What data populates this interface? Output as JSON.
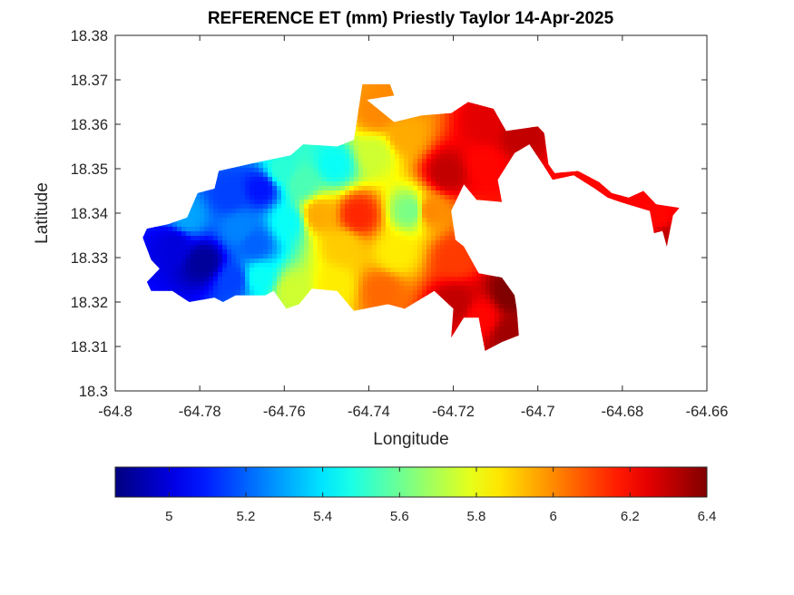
{
  "chart_data": {
    "type": "heatmap",
    "title": "REFERENCE ET (mm) Priestly Taylor 14-Apr-2025",
    "xlabel": "Longitude",
    "ylabel": "Latitude",
    "xlim": [
      -64.8,
      -64.66
    ],
    "ylim": [
      18.3,
      18.38
    ],
    "xticks": [
      -64.8,
      -64.78,
      -64.76,
      -64.74,
      -64.72,
      -64.7,
      -64.68,
      -64.66
    ],
    "xtick_labels": [
      "-64.8",
      "-64.78",
      "-64.76",
      "-64.74",
      "-64.72",
      "-64.7",
      "-64.68",
      "-64.66"
    ],
    "yticks": [
      18.3,
      18.31,
      18.32,
      18.33,
      18.34,
      18.35,
      18.36,
      18.37,
      18.38
    ],
    "ytick_labels": [
      "18.3",
      "18.31",
      "18.32",
      "18.33",
      "18.34",
      "18.35",
      "18.36",
      "18.37",
      "18.38"
    ],
    "grid": false,
    "colormap": "jet",
    "colorbar": {
      "location": "bottom",
      "range": [
        4.86,
        6.4
      ],
      "ticks": [
        5,
        5.2,
        5.4,
        5.6,
        5.8,
        6,
        6.2,
        6.4
      ],
      "tick_labels": [
        "5",
        "5.2",
        "5.4",
        "5.6",
        "5.8",
        "6",
        "6.2",
        "6.4"
      ]
    },
    "region_outline": [
      [
        -64.7925,
        18.3365
      ],
      [
        -64.7875,
        18.3375
      ],
      [
        -64.783,
        18.339
      ],
      [
        -64.7805,
        18.3445
      ],
      [
        -64.7765,
        18.3455
      ],
      [
        -64.7755,
        18.3495
      ],
      [
        -64.7685,
        18.351
      ],
      [
        -64.7585,
        18.353
      ],
      [
        -64.7555,
        18.3555
      ],
      [
        -64.7475,
        18.355
      ],
      [
        -64.7435,
        18.3565
      ],
      [
        -64.7415,
        18.369
      ],
      [
        -64.735,
        18.369
      ],
      [
        -64.734,
        18.3665
      ],
      [
        -64.7405,
        18.3655
      ],
      [
        -64.734,
        18.3605
      ],
      [
        -64.7275,
        18.362
      ],
      [
        -64.7205,
        18.3625
      ],
      [
        -64.7165,
        18.365
      ],
      [
        -64.7105,
        18.3635
      ],
      [
        -64.7075,
        18.3585
      ],
      [
        -64.7,
        18.3595
      ],
      [
        -64.6985,
        18.358
      ],
      [
        -64.6975,
        18.351
      ],
      [
        -64.696,
        18.349
      ],
      [
        -64.6905,
        18.3495
      ],
      [
        -64.6855,
        18.347
      ],
      [
        -64.6825,
        18.3445
      ],
      [
        -64.6785,
        18.3435
      ],
      [
        -64.675,
        18.345
      ],
      [
        -64.672,
        18.342
      ],
      [
        -64.6665,
        18.3412
      ],
      [
        -64.668,
        18.3395
      ],
      [
        -64.6695,
        18.3325
      ],
      [
        -64.6705,
        18.336
      ],
      [
        -64.6725,
        18.3355
      ],
      [
        -64.6735,
        18.3405
      ],
      [
        -64.6805,
        18.3425
      ],
      [
        -64.6835,
        18.3435
      ],
      [
        -64.6865,
        18.3455
      ],
      [
        -64.6915,
        18.3485
      ],
      [
        -64.6965,
        18.3475
      ],
      [
        -64.6985,
        18.3505
      ],
      [
        -64.702,
        18.3555
      ],
      [
        -64.7055,
        18.3535
      ],
      [
        -64.7075,
        18.3505
      ],
      [
        -64.7095,
        18.3475
      ],
      [
        -64.7085,
        18.3425
      ],
      [
        -64.7145,
        18.343
      ],
      [
        -64.7175,
        18.3465
      ],
      [
        -64.7205,
        18.3405
      ],
      [
        -64.7195,
        18.334
      ],
      [
        -64.7175,
        18.3325
      ],
      [
        -64.714,
        18.3265
      ],
      [
        -64.7085,
        18.3255
      ],
      [
        -64.7055,
        18.3215
      ],
      [
        -64.705,
        18.3185
      ],
      [
        -64.7045,
        18.3125
      ],
      [
        -64.7085,
        18.311
      ],
      [
        -64.7125,
        18.309
      ],
      [
        -64.714,
        18.3165
      ],
      [
        -64.7175,
        18.3165
      ],
      [
        -64.7205,
        18.312
      ],
      [
        -64.72,
        18.3185
      ],
      [
        -64.7245,
        18.3225
      ],
      [
        -64.7315,
        18.3185
      ],
      [
        -64.7355,
        18.3195
      ],
      [
        -64.7435,
        18.318
      ],
      [
        -64.7475,
        18.3225
      ],
      [
        -64.7535,
        18.323
      ],
      [
        -64.7565,
        18.3195
      ],
      [
        -64.7595,
        18.3185
      ],
      [
        -64.7625,
        18.3225
      ],
      [
        -64.7645,
        18.3215
      ],
      [
        -64.7715,
        18.3215
      ],
      [
        -64.7745,
        18.32
      ],
      [
        -64.7765,
        18.321
      ],
      [
        -64.7825,
        18.32
      ],
      [
        -64.7865,
        18.3225
      ],
      [
        -64.7915,
        18.3225
      ],
      [
        -64.7925,
        18.3245
      ],
      [
        -64.7895,
        18.3275
      ],
      [
        -64.7915,
        18.3295
      ],
      [
        -64.7935,
        18.3345
      ]
    ],
    "field_points": [
      {
        "lon": -64.779,
        "lat": 18.329,
        "value": 4.9
      },
      {
        "lon": -64.786,
        "lat": 18.333,
        "value": 5.0
      },
      {
        "lon": -64.772,
        "lat": 18.325,
        "value": 5.15
      },
      {
        "lon": -64.783,
        "lat": 18.339,
        "value": 5.3
      },
      {
        "lon": -64.773,
        "lat": 18.344,
        "value": 5.15
      },
      {
        "lon": -64.7655,
        "lat": 18.3455,
        "value": 5.08
      },
      {
        "lon": -64.767,
        "lat": 18.333,
        "value": 5.2
      },
      {
        "lon": -64.766,
        "lat": 18.3255,
        "value": 5.45
      },
      {
        "lon": -64.758,
        "lat": 18.3225,
        "value": 5.75
      },
      {
        "lon": -64.759,
        "lat": 18.338,
        "value": 5.45
      },
      {
        "lon": -64.756,
        "lat": 18.347,
        "value": 5.55
      },
      {
        "lon": -64.7605,
        "lat": 18.3495,
        "value": 5.5
      },
      {
        "lon": -64.748,
        "lat": 18.351,
        "value": 5.45
      },
      {
        "lon": -64.752,
        "lat": 18.3395,
        "value": 5.95
      },
      {
        "lon": -64.7425,
        "lat": 18.3395,
        "value": 6.15
      },
      {
        "lon": -64.746,
        "lat": 18.3325,
        "value": 5.9
      },
      {
        "lon": -64.748,
        "lat": 18.3235,
        "value": 5.85
      },
      {
        "lon": -64.737,
        "lat": 18.3225,
        "value": 6.05
      },
      {
        "lon": -64.7385,
        "lat": 18.3535,
        "value": 5.75
      },
      {
        "lon": -64.738,
        "lat": 18.3625,
        "value": 6.0
      },
      {
        "lon": -64.7315,
        "lat": 18.3575,
        "value": 5.95
      },
      {
        "lon": -64.73,
        "lat": 18.3405,
        "value": 5.62
      },
      {
        "lon": -64.7335,
        "lat": 18.331,
        "value": 5.85
      },
      {
        "lon": -64.7215,
        "lat": 18.349,
        "value": 6.3
      },
      {
        "lon": -64.7255,
        "lat": 18.3405,
        "value": 6.0
      },
      {
        "lon": -64.712,
        "lat": 18.36,
        "value": 6.25
      },
      {
        "lon": -64.7125,
        "lat": 18.351,
        "value": 6.2
      },
      {
        "lon": -64.7195,
        "lat": 18.33,
        "value": 6.12
      },
      {
        "lon": -64.7195,
        "lat": 18.3195,
        "value": 6.3
      },
      {
        "lon": -64.7135,
        "lat": 18.3165,
        "value": 6.2
      },
      {
        "lon": -64.7065,
        "lat": 18.322,
        "value": 6.4
      },
      {
        "lon": -64.7065,
        "lat": 18.3125,
        "value": 6.35
      },
      {
        "lon": -64.7705,
        "lat": 18.3365,
        "value": 5.25
      },
      {
        "lon": -64.7335,
        "lat": 18.3655,
        "value": 6.0
      },
      {
        "lon": -64.7045,
        "lat": 18.3575,
        "value": 6.3
      },
      {
        "lon": -64.6915,
        "lat": 18.348,
        "value": 6.2
      },
      {
        "lon": -64.6715,
        "lat": 18.339,
        "value": 6.2
      },
      {
        "lon": -64.6695,
        "lat": 18.3345,
        "value": 6.3
      }
    ]
  }
}
